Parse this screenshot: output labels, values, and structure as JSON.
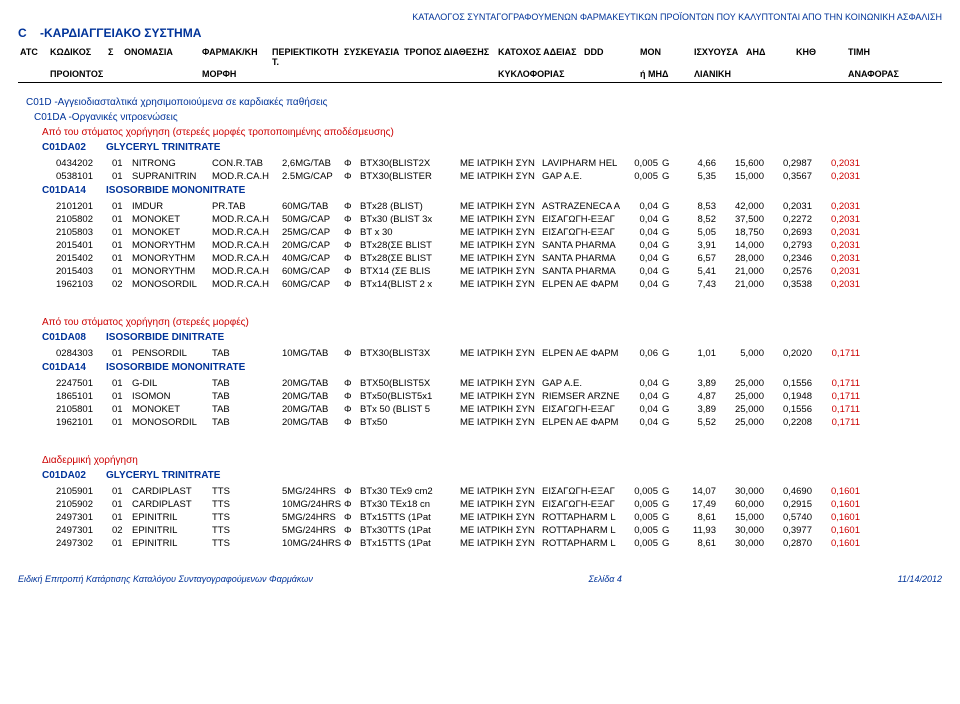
{
  "page": {
    "catalog_title": "ΚΑΤΑΛΟΓΟΣ ΣΥΝΤΑΓΟΓΡΑΦΟΥΜΕΝΩΝ ΦΑΡΜΑΚΕΥΤΙΚΩΝ ΠΡΟΪΟΝΤΩΝ ΠΟΥ ΚΑΛΥΠΤΟΝΤΑΙ ΑΠΟ ΤΗΝ ΚΟΙΝΩΝΙΚΗ ΑΣΦΑΛΙΣΗ",
    "section_code": "C",
    "section_name": "-ΚΑΡΔΙΑΓΓΕΙΑΚΟ ΣΥΣΤΗΜΑ"
  },
  "columns": {
    "h1": [
      "ATC",
      "ΚΩΔΙΚΟΣ",
      "Σ",
      "ΟΝΟΜΑΣΙΑ",
      "ΦΑΡΜΑΚ/ΚΗ",
      "ΠΕΡΙΕΚΤΙΚΟΤΗ Τ.",
      "ΣΥΣΚΕΥΑΣΙΑ",
      "ΤΡΟΠΟΣ ΔΙΑΘΕΣΗΣ",
      "ΚΑΤΟΧΟΣ ΑΔΕΙΑΣ",
      "DDD",
      "ΜΟΝ",
      "ΙΣΧΥΟΥΣΑ",
      "ΑΗΔ",
      "ΚΗΘ",
      "ΤΙΜΗ"
    ],
    "h2": [
      "",
      "ΠΡΟΙΟΝΤΟΣ",
      "",
      "",
      "ΜΟΡΦΗ",
      "",
      "",
      "",
      "ΚΥΚΛΟΦΟΡΙΑΣ",
      "",
      "ή ΜΗΔ",
      "ΛΙΑΝΙΚΗ",
      "",
      "",
      "ΑΝΑΦΟΡΑΣ"
    ]
  },
  "colors": {
    "blue": "#003399",
    "red": "#cc0000",
    "black": "#000000"
  },
  "groups": [
    {
      "lvl1": {
        "code": "C01D",
        "text": "-Αγγειοδιασταλτικά χρησιμοποιούμενα σε καρδιακές παθήσεις"
      },
      "lvl2": {
        "code": "C01DA",
        "text": "-Οργανικές νιτροενώσεις"
      },
      "lvl3": "Από του στόματος χορήγηση (στερεές μορφές τροποποιημένης αποδέσμευσης)",
      "subs": [
        {
          "lvl4": {
            "code": "C01DA02",
            "text": "GLYCERYL TRINITRATE"
          },
          "rows": [
            [
              "0434202",
              "01",
              "NITRONG",
              "CON.R.TAB",
              "2,6MG/TAB",
              "Φ",
              "BTX30(BLIST2X",
              "ΜΕ ΙΑΤΡΙΚΗ ΣΥΝ",
              "LAVIPHARM HEL",
              "0,005",
              "G",
              "4,66",
              "15,600",
              "0,2987",
              "0,2031"
            ],
            [
              "0538101",
              "01",
              "SUPRANITRIN",
              "MOD.R.CA.H",
              "2.5MG/CAP",
              "Φ",
              "BTX30(BLISTER",
              "ΜΕ ΙΑΤΡΙΚΗ ΣΥΝ",
              "GAP A.E.",
              "0,005",
              "G",
              "5,35",
              "15,000",
              "0,3567",
              "0,2031"
            ]
          ]
        },
        {
          "lvl4": {
            "code": "C01DA14",
            "text": "ISOSORBIDE MONONITRATE"
          },
          "rows": [
            [
              "2101201",
              "01",
              "IMDUR",
              "PR.TAB",
              "60MG/TAB",
              "Φ",
              "BTx28 (BLIST)",
              "ΜΕ ΙΑΤΡΙΚΗ ΣΥΝ",
              "ASTRAZENECA A",
              "0,04",
              "G",
              "8,53",
              "42,000",
              "0,2031",
              "0,2031"
            ],
            [
              "2105802",
              "01",
              "MONOKET",
              "MOD.R.CA.H",
              "50MG/CAP",
              "Φ",
              "BTx30 (BLIST 3x",
              "ΜΕ ΙΑΤΡΙΚΗ ΣΥΝ",
              "ΕΙΣΑΓΩΓΗ-ΕΞΑΓ",
              "0,04",
              "G",
              "8,52",
              "37,500",
              "0,2272",
              "0,2031"
            ],
            [
              "2105803",
              "01",
              "MONOKET",
              "MOD.R.CA.H",
              "25MG/CAP",
              "Φ",
              "BT x 30",
              "ΜΕ ΙΑΤΡΙΚΗ ΣΥΝ",
              "ΕΙΣΑΓΩΓΗ-ΕΞΑΓ",
              "0,04",
              "G",
              "5,05",
              "18,750",
              "0,2693",
              "0,2031"
            ],
            [
              "2015401",
              "01",
              "MONORYTHM",
              "MOD.R.CA.H",
              "20MG/CAP",
              "Φ",
              "BTx28(ΣΕ BLIST",
              "ΜΕ ΙΑΤΡΙΚΗ ΣΥΝ",
              "SANTA PHARMA",
              "0,04",
              "G",
              "3,91",
              "14,000",
              "0,2793",
              "0,2031"
            ],
            [
              "2015402",
              "01",
              "MONORYTHM",
              "MOD.R.CA.H",
              "40MG/CAP",
              "Φ",
              "BTx28(ΣΕ BLIST",
              "ΜΕ ΙΑΤΡΙΚΗ ΣΥΝ",
              "SANTA PHARMA",
              "0,04",
              "G",
              "6,57",
              "28,000",
              "0,2346",
              "0,2031"
            ],
            [
              "2015403",
              "01",
              "MONORYTHM",
              "MOD.R.CA.H",
              "60MG/CAP",
              "Φ",
              "BTX14 (ΣΕ BLIS",
              "ΜΕ ΙΑΤΡΙΚΗ ΣΥΝ",
              "SANTA PHARMA",
              "0,04",
              "G",
              "5,41",
              "21,000",
              "0,2576",
              "0,2031"
            ],
            [
              "1962103",
              "02",
              "MONOSORDIL",
              "MOD.R.CA.H",
              "60MG/CAP",
              "Φ",
              "BTx14(BLIST 2 x",
              "ΜΕ ΙΑΤΡΙΚΗ ΣΥΝ",
              "ELPEN AE ΦΑΡΜ",
              "0,04",
              "G",
              "7,43",
              "21,000",
              "0,3538",
              "0,2031"
            ]
          ]
        }
      ]
    },
    {
      "lvl3": "Από του στόματος χορήγηση (στερεές μορφές)",
      "subs": [
        {
          "lvl4": {
            "code": "C01DA08",
            "text": "ISOSORBIDE DINITRATE"
          },
          "rows": [
            [
              "0284303",
              "01",
              "PENSORDIL",
              "TAB",
              "10MG/TAB",
              "Φ",
              "BTX30(BLIST3X",
              "ΜΕ ΙΑΤΡΙΚΗ ΣΥΝ",
              "ELPEN AE ΦΑΡΜ",
              "0,06",
              "G",
              "1,01",
              "5,000",
              "0,2020",
              "0,1711"
            ]
          ]
        },
        {
          "lvl4": {
            "code": "C01DA14",
            "text": "ISOSORBIDE MONONITRATE"
          },
          "rows": [
            [
              "2247501",
              "01",
              "G-DIL",
              "TAB",
              "20MG/TAB",
              "Φ",
              "BTX50(BLIST5X",
              "ΜΕ ΙΑΤΡΙΚΗ ΣΥΝ",
              "GAP A.E.",
              "0,04",
              "G",
              "3,89",
              "25,000",
              "0,1556",
              "0,1711"
            ],
            [
              "1865101",
              "01",
              "ISOMON",
              "TAB",
              "20MG/TAB",
              "Φ",
              "BTx50(BLIST5x1",
              "ΜΕ ΙΑΤΡΙΚΗ ΣΥΝ",
              "RIEMSER ARZNE",
              "0,04",
              "G",
              "4,87",
              "25,000",
              "0,1948",
              "0,1711"
            ],
            [
              "2105801",
              "01",
              "MONOKET",
              "TAB",
              "20MG/TAB",
              "Φ",
              "BTx 50 (BLIST 5",
              "ΜΕ ΙΑΤΡΙΚΗ ΣΥΝ",
              "ΕΙΣΑΓΩΓΗ-ΕΞΑΓ",
              "0,04",
              "G",
              "3,89",
              "25,000",
              "0,1556",
              "0,1711"
            ],
            [
              "1962101",
              "01",
              "MONOSORDIL",
              "TAB",
              "20MG/TAB",
              "Φ",
              "BTx50",
              "ΜΕ ΙΑΤΡΙΚΗ ΣΥΝ",
              "ELPEN AE ΦΑΡΜ",
              "0,04",
              "G",
              "5,52",
              "25,000",
              "0,2208",
              "0,1711"
            ]
          ]
        }
      ]
    },
    {
      "lvl3": "Διαδερμική χορήγηση",
      "subs": [
        {
          "lvl4": {
            "code": "C01DA02",
            "text": "GLYCERYL TRINITRATE"
          },
          "rows": [
            [
              "2105901",
              "01",
              "CARDIPLAST",
              "TTS",
              "5MG/24HRS",
              "Φ",
              "BTx30 TEx9 cm2",
              "ΜΕ ΙΑΤΡΙΚΗ ΣΥΝ",
              "ΕΙΣΑΓΩΓΗ-ΕΞΑΓ",
              "0,005",
              "G",
              "14,07",
              "30,000",
              "0,4690",
              "0,1601"
            ],
            [
              "2105902",
              "01",
              "CARDIPLAST",
              "TTS",
              "10MG/24HRS",
              "Φ",
              "BTx30 TEx18 cn",
              "ΜΕ ΙΑΤΡΙΚΗ ΣΥΝ",
              "ΕΙΣΑΓΩΓΗ-ΕΞΑΓ",
              "0,005",
              "G",
              "17,49",
              "60,000",
              "0,2915",
              "0,1601"
            ],
            [
              "2497301",
              "01",
              "EPINITRIL",
              "TTS",
              "5MG/24HRS",
              "Φ",
              "BTx15TTS (1Pat",
              "ΜΕ ΙΑΤΡΙΚΗ ΣΥΝ",
              "ROTTAPHARM L",
              "0,005",
              "G",
              "8,61",
              "15,000",
              "0,5740",
              "0,1601"
            ],
            [
              "2497301",
              "02",
              "EPINITRIL",
              "TTS",
              "5MG/24HRS",
              "Φ",
              "BTx30TTS (1Pat",
              "ΜΕ ΙΑΤΡΙΚΗ ΣΥΝ",
              "ROTTAPHARM L",
              "0,005",
              "G",
              "11,93",
              "30,000",
              "0,3977",
              "0,1601"
            ],
            [
              "2497302",
              "01",
              "EPINITRIL",
              "TTS",
              "10MG/24HRS",
              "Φ",
              "BTx15TTS (1Pat",
              "ΜΕ ΙΑΤΡΙΚΗ ΣΥΝ",
              "ROTTAPHARM L",
              "0,005",
              "G",
              "8,61",
              "30,000",
              "0,2870",
              "0,1601"
            ]
          ]
        }
      ]
    }
  ],
  "footer": {
    "left": "Ειδική Επιτροπή Κατάρτισης Καταλόγου Συνταγογραφούμενων Φαρμάκων",
    "center": "Σελίδα 4",
    "right": "11/14/2012"
  }
}
